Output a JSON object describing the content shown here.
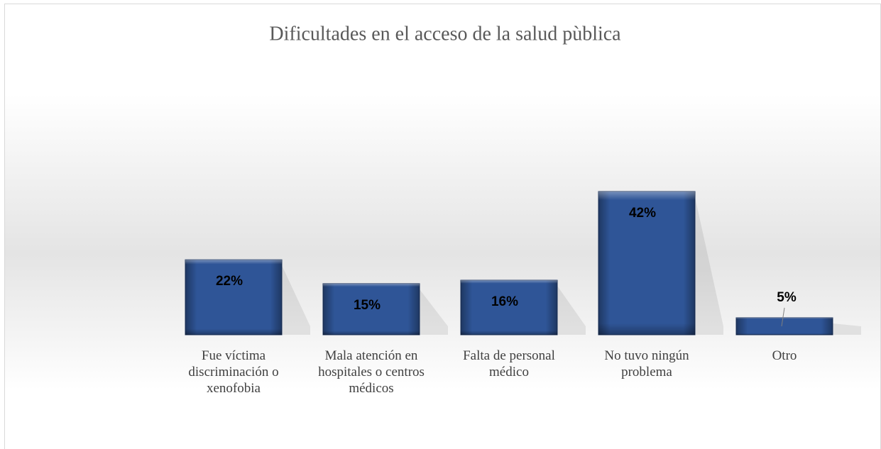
{
  "chart_data": {
    "type": "bar",
    "title": "Dificultades en el acceso de la salud pùblica",
    "categories": [
      "Fue víctima discriminación o xenofobia",
      "Mala atención en hospitales o centros médicos",
      "Falta de personal médico",
      "No tuvo ningún problema",
      "Otro"
    ],
    "values": [
      22,
      15,
      16,
      42,
      5
    ],
    "value_labels": [
      "22%",
      "15%",
      "16%",
      "42%",
      "5%"
    ],
    "color": "#2f5597"
  }
}
